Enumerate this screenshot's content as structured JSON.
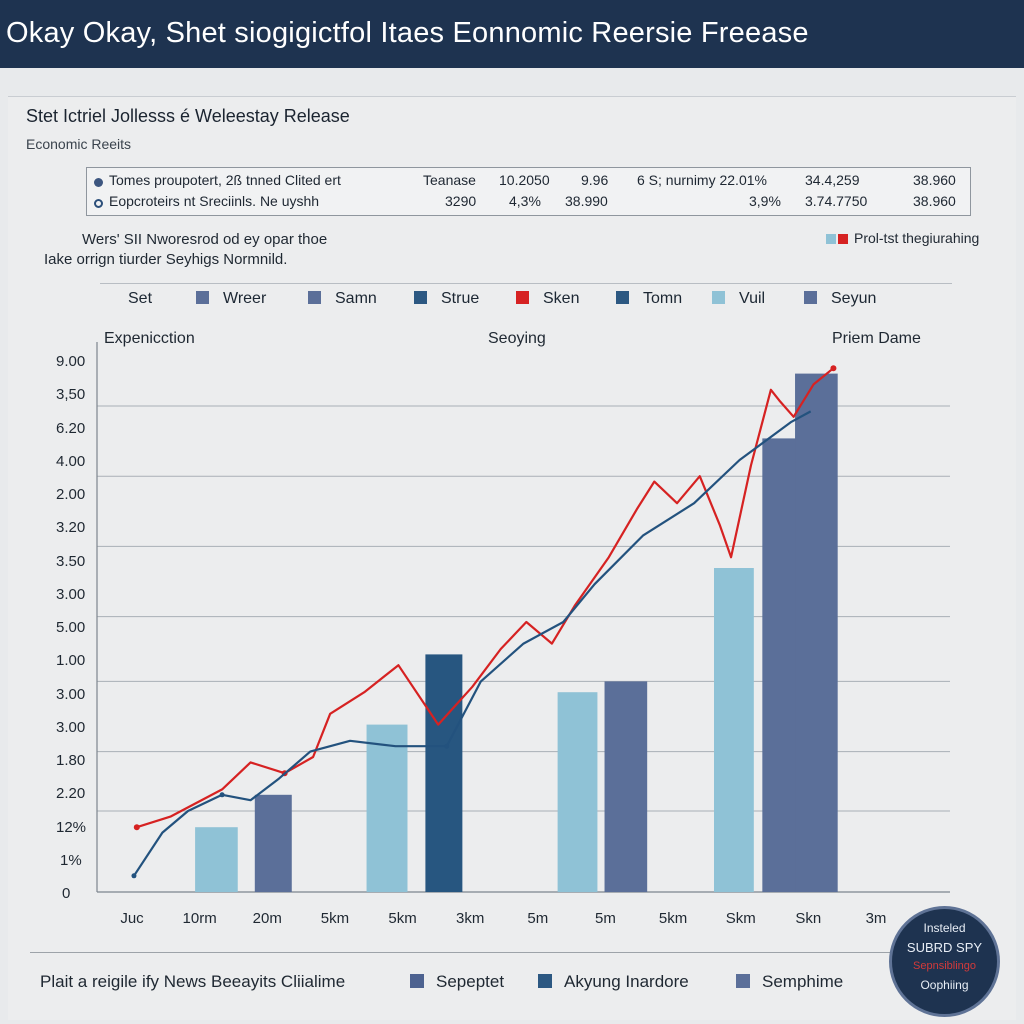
{
  "header": {
    "title": "Okay Okay, Shet siogigictfol Itaes Eonnomic Reersie Freease"
  },
  "subheader": {
    "title": "Stet Ictriel Jollesss é Weleestay Release",
    "subtitle": "Economic Reeits"
  },
  "info_table": {
    "rows": [
      {
        "label": "Tomes proupotert, 2ß tnned Clited ert",
        "cols": [
          "Teanase",
          "10.2050",
          "9.96",
          "6 S; nurnimy 22.01%",
          "34.4,259",
          "38.960"
        ]
      },
      {
        "label": "Eopcroteirs nt Sreciinls. Ne uyshh",
        "cols": [
          "3290",
          "4,3%",
          "38.990",
          "3,9%",
          "3.74.7750",
          "38.960"
        ]
      }
    ]
  },
  "note": {
    "line1": "Wers' SII Nworesrod od ey opar thoe",
    "line2": "Iake orrign tiurder Seyhigs Normnild."
  },
  "right_legend": {
    "label": "Prol-tst thegiurahing",
    "colors": [
      "#8fc2d6",
      "#d62222"
    ]
  },
  "legend_top": {
    "items": [
      {
        "label": "Set",
        "color": ""
      },
      {
        "label": "Wreer",
        "color": "#5b6f99"
      },
      {
        "label": "Samn",
        "color": "#5b6f99"
      },
      {
        "label": "Strue",
        "color": "#2c5882"
      },
      {
        "label": "Sken",
        "color": "#d62222"
      },
      {
        "label": "Tomn",
        "color": "#2c5882"
      },
      {
        "label": "Vuil",
        "color": "#8fc2d6"
      },
      {
        "label": "Seyun",
        "color": "#5b6f99"
      }
    ]
  },
  "section_labels": {
    "left": "Expenicction",
    "center": "Seoying",
    "right": "Priem Dame"
  },
  "bottom_legend": {
    "title": "Plait a reigile ify News Beeayits Cliialime",
    "items": [
      {
        "label": "Sepeptet",
        "color": "#4d6290"
      },
      {
        "label": "Akyung Inardore",
        "color": "#2c5882"
      },
      {
        "label": "Semphime",
        "color": "#5b6f99"
      }
    ]
  },
  "badge": {
    "line1": "Insteled",
    "line2": "SUBRD SPY",
    "line3": "Sepnsiblingo",
    "line4": "Oophiing"
  },
  "colors": {
    "header_bg": "#1e3350",
    "bar_light": "#8fc2d6",
    "bar_mid": "#5b6f99",
    "bar_dark": "#275680",
    "line_red": "#d62222",
    "line_blue": "#23527e"
  },
  "chart_data": {
    "type": "bar",
    "title": "Stet Ictriel Jollesss é Weleestay Release",
    "xlabel": "",
    "ylabel": "",
    "ylim": [
      0,
      100
    ],
    "y_tick_labels": [
      "9.00",
      "3,50",
      "6.20",
      "4.00",
      "2.00",
      "3.20",
      "3.50",
      "3.00",
      "5.00",
      "1.00",
      "3.00",
      "3.00",
      "1.80",
      "2.20",
      "12%",
      "1%",
      "0"
    ],
    "x_tick_labels": [
      "Juc",
      "10rm",
      "20m",
      "5km",
      "5km",
      "3km",
      "5m",
      "5m",
      "5km",
      "Skm",
      "Skn",
      "3m"
    ],
    "bars": [
      {
        "x": 2.1,
        "width": 0.75,
        "value": 12,
        "color": "#8fc2d6"
      },
      {
        "x": 3.1,
        "width": 0.65,
        "value": 18,
        "color": "#5b6f99"
      },
      {
        "x": 5.1,
        "width": 0.72,
        "value": 31,
        "color": "#8fc2d6"
      },
      {
        "x": 6.1,
        "width": 0.65,
        "value": 44,
        "color": "#275680"
      },
      {
        "x": 8.45,
        "width": 0.7,
        "value": 37,
        "color": "#8fc2d6"
      },
      {
        "x": 9.3,
        "width": 0.75,
        "value": 39,
        "color": "#5b6f99"
      },
      {
        "x": 11.2,
        "width": 0.7,
        "value": 60,
        "color": "#8fc2d6"
      },
      {
        "x": 12.0,
        "width": 0.6,
        "value": 84,
        "color": "#5b6f99"
      },
      {
        "x": 12.65,
        "width": 0.75,
        "value": 96,
        "color": "#5b6f99"
      }
    ],
    "series": [
      {
        "name": "Sken",
        "color": "#d62222",
        "x": [
          0.7,
          1.3,
          2.2,
          2.7,
          3.3,
          3.8,
          4.1,
          4.7,
          5.3,
          6.0,
          6.6,
          7.1,
          7.55,
          8.0,
          8.4,
          9.0,
          9.5,
          9.8,
          10.2,
          10.6,
          10.95,
          11.15,
          11.5,
          11.7,
          11.85,
          12.0,
          12.25,
          12.6,
          12.95
        ],
        "values": [
          12,
          14,
          19,
          24,
          22,
          25,
          33,
          37,
          42,
          31,
          38,
          45,
          50,
          46,
          53,
          62,
          71,
          76,
          72,
          77,
          68,
          62,
          79,
          87,
          93,
          91,
          88,
          94,
          97
        ]
      },
      {
        "name": "Tomn",
        "color": "#23527e",
        "x": [
          0.65,
          1.15,
          1.6,
          2.2,
          2.7,
          3.2,
          3.75,
          4.45,
          5.25,
          6.15,
          6.75,
          7.5,
          8.2,
          8.75,
          9.6,
          10.5,
          11.3,
          12.2,
          12.55
        ],
        "values": [
          3,
          11,
          15,
          18,
          17,
          21,
          26,
          28,
          27,
          27,
          39,
          46,
          50,
          57,
          66,
          72,
          80,
          87,
          89
        ]
      }
    ]
  }
}
